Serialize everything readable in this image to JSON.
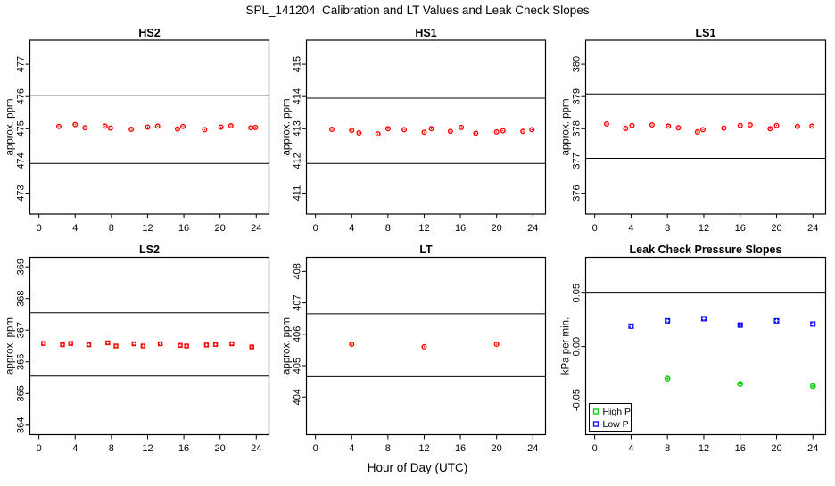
{
  "page": {
    "title": "SPL_141204  Calibration and LT Values and Leak Check Slopes",
    "xlabel": "Hour of Day (UTC)",
    "background": "#FFFFFF",
    "colors": {
      "red": "#FF0000",
      "green": "#00CC00",
      "blue": "#0000FF",
      "axis": "#000000"
    }
  },
  "chart_data": [
    {
      "id": "hs2",
      "type": "scatter",
      "title": "HS2",
      "ylabel": "approx. ppm",
      "xlim": [
        -1,
        25.4
      ],
      "ylim": [
        472.35,
        477.75
      ],
      "xtick_labels": [
        "0",
        "4",
        "8",
        "12",
        "16",
        "20",
        "24"
      ],
      "xtick_values": [
        0,
        4,
        8,
        12,
        16,
        20,
        24
      ],
      "ytick_labels": [
        "473",
        "474",
        "475",
        "476",
        "477"
      ],
      "ytick_values": [
        473,
        474,
        475,
        476,
        477
      ],
      "ref_lines": [
        473.92,
        476.04
      ],
      "series": [
        {
          "name": "HS2 calibration",
          "marker": "circle-dot",
          "color": "#FF0000",
          "x": [
            2.2,
            4,
            5.1,
            7.3,
            7.9,
            10.2,
            12,
            13.1,
            15.3,
            15.9,
            18.3,
            20.1,
            21.2,
            23.4,
            23.9
          ],
          "y": [
            475.07,
            475.13,
            475.03,
            475.08,
            475.02,
            474.98,
            475.05,
            475.08,
            474.99,
            475.07,
            474.97,
            475.05,
            475.09,
            475.03,
            475.04
          ]
        }
      ]
    },
    {
      "id": "hs1",
      "type": "scatter",
      "title": "HS1",
      "ylabel": "approx. ppm",
      "xlim": [
        -1,
        25.4
      ],
      "ylim": [
        410.35,
        415.75
      ],
      "xtick_labels": [
        "0",
        "4",
        "8",
        "12",
        "16",
        "20",
        "24"
      ],
      "xtick_values": [
        0,
        4,
        8,
        12,
        16,
        20,
        24
      ],
      "ytick_labels": [
        "411",
        "412",
        "413",
        "414",
        "415"
      ],
      "ytick_values": [
        411,
        412,
        413,
        414,
        415
      ],
      "ref_lines": [
        411.92,
        413.95
      ],
      "series": [
        {
          "name": "HS1 calibration",
          "marker": "circle-dot",
          "color": "#FF0000",
          "x": [
            1.8,
            4,
            4.8,
            6.9,
            8,
            9.8,
            12,
            12.8,
            14.9,
            16.1,
            17.7,
            20,
            20.7,
            22.9,
            23.9
          ],
          "y": [
            412.98,
            412.95,
            412.87,
            412.84,
            413.0,
            412.97,
            412.89,
            413.0,
            412.92,
            413.04,
            412.86,
            412.9,
            412.94,
            412.92,
            412.97
          ]
        }
      ]
    },
    {
      "id": "ls1",
      "type": "scatter",
      "title": "LS1",
      "ylabel": "approx. ppm",
      "xlim": [
        -1,
        25.4
      ],
      "ylim": [
        375.35,
        380.75
      ],
      "xtick_labels": [
        "0",
        "4",
        "8",
        "12",
        "16",
        "20",
        "24"
      ],
      "xtick_values": [
        0,
        4,
        8,
        12,
        16,
        20,
        24
      ],
      "ytick_labels": [
        "376",
        "377",
        "378",
        "379",
        "380"
      ],
      "ytick_values": [
        376,
        377,
        378,
        379,
        380
      ],
      "ref_lines": [
        377.08,
        379.08
      ],
      "series": [
        {
          "name": "LS1 calibration",
          "marker": "circle-dot",
          "color": "#FF0000",
          "x": [
            1.3,
            3.4,
            4.1,
            6.3,
            8.1,
            9.2,
            11.3,
            11.9,
            14.2,
            16,
            17.1,
            19.3,
            20,
            22.3,
            23.9
          ],
          "y": [
            378.15,
            378.01,
            378.1,
            378.12,
            378.08,
            378.03,
            377.9,
            377.97,
            378.02,
            378.1,
            378.12,
            378.0,
            378.1,
            378.07,
            378.08
          ]
        }
      ]
    },
    {
      "id": "ls2",
      "type": "scatter",
      "title": "LS2",
      "ylabel": "approx. ppm",
      "xlim": [
        -1,
        25.4
      ],
      "ylim": [
        363.7,
        369.3
      ],
      "xtick_labels": [
        "0",
        "4",
        "8",
        "12",
        "16",
        "20",
        "24"
      ],
      "xtick_values": [
        0,
        4,
        8,
        12,
        16,
        20,
        24
      ],
      "ytick_labels": [
        "364",
        "365",
        "366",
        "367",
        "368",
        "369"
      ],
      "ytick_values": [
        364,
        365,
        366,
        367,
        368,
        369
      ],
      "ref_lines": [
        365.55,
        367.55
      ],
      "series": [
        {
          "name": "LS2 calibration",
          "marker": "square-dot",
          "color": "#FF0000",
          "x": [
            0.5,
            2.6,
            3.5,
            5.5,
            7.6,
            8.5,
            10.5,
            11.5,
            13.4,
            15.6,
            16.3,
            18.5,
            19.5,
            21.3,
            23.5
          ],
          "y": [
            366.58,
            366.54,
            366.58,
            366.54,
            366.6,
            366.5,
            366.57,
            366.5,
            366.57,
            366.52,
            366.5,
            366.53,
            366.55,
            366.57,
            366.47
          ]
        }
      ]
    },
    {
      "id": "lt",
      "type": "scatter",
      "title": "LT",
      "ylabel": "approx. ppm",
      "xlim": [
        -1,
        25.4
      ],
      "ylim": [
        402.8,
        408.45
      ],
      "xtick_labels": [
        "0",
        "4",
        "8",
        "12",
        "16",
        "20",
        "24"
      ],
      "xtick_values": [
        0,
        4,
        8,
        12,
        16,
        20,
        24
      ],
      "ytick_labels": [
        "404",
        "405",
        "406",
        "407",
        "408"
      ],
      "ytick_values": [
        404,
        405,
        406,
        407,
        408
      ],
      "ref_lines": [
        404.65,
        406.65
      ],
      "series": [
        {
          "name": "LT values",
          "marker": "circle-dot",
          "color": "#FF0000",
          "x": [
            4,
            12,
            20
          ],
          "y": [
            405.68,
            405.6,
            405.68
          ]
        }
      ]
    },
    {
      "id": "leak",
      "type": "scatter",
      "title": "Leak Check Pressure Slopes",
      "ylabel": "kPa per min.",
      "xlim": [
        -1,
        25.4
      ],
      "ylim": [
        -0.0825,
        0.0835
      ],
      "xtick_labels": [
        "0",
        "4",
        "8",
        "12",
        "16",
        "20",
        "24"
      ],
      "xtick_values": [
        0,
        4,
        8,
        12,
        16,
        20,
        24
      ],
      "ytick_labels": [
        "-0.05",
        "0.00",
        "0.05"
      ],
      "ytick_values": [
        -0.05,
        0.0,
        0.05
      ],
      "ref_lines": [
        -0.05,
        0.05
      ],
      "series": [
        {
          "name": "High P",
          "marker": "circle-plus",
          "color": "#00CC00",
          "x": [
            8,
            16,
            24
          ],
          "y": [
            -0.03,
            -0.035,
            -0.037
          ]
        },
        {
          "name": "Low P",
          "marker": "square-plus",
          "color": "#0000FF",
          "x": [
            4,
            8,
            12,
            16,
            20,
            24
          ],
          "y": [
            0.019,
            0.024,
            0.026,
            0.02,
            0.024,
            0.021
          ]
        }
      ],
      "legend": {
        "items": [
          {
            "label": "High P",
            "color": "#00CC00",
            "marker": "square"
          },
          {
            "label": "Low P",
            "color": "#0000FF",
            "marker": "square"
          }
        ]
      }
    }
  ]
}
